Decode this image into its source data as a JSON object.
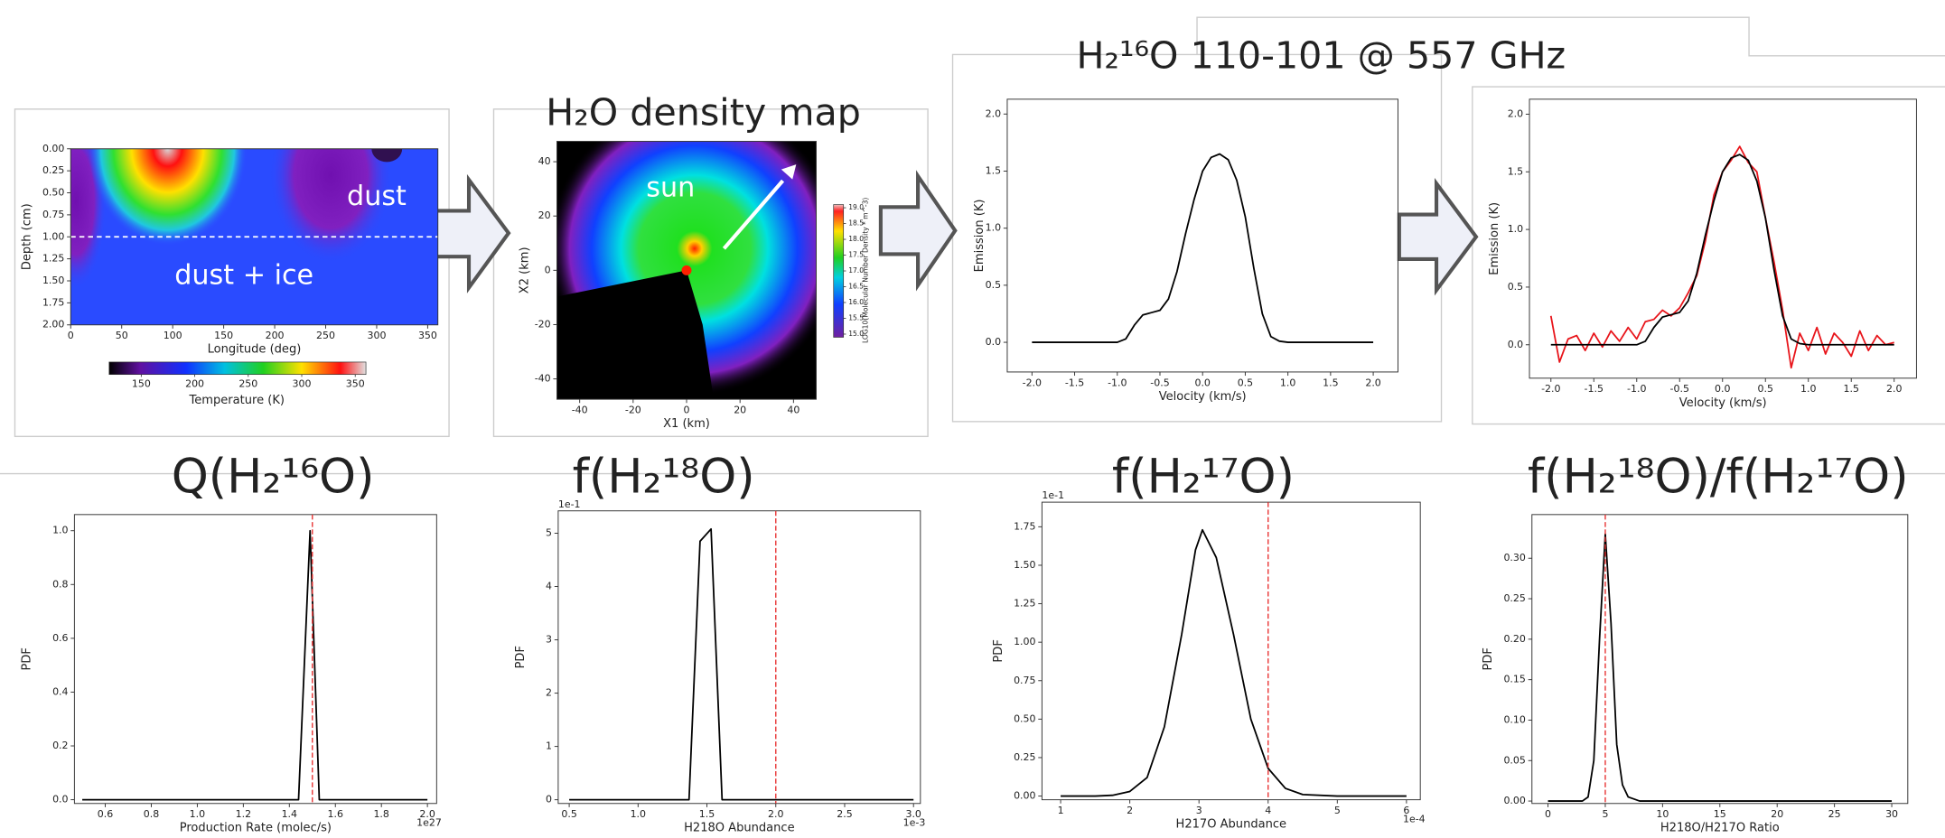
{
  "chart_data": [
    {
      "type": "heatmap",
      "xlabel": "Longitude (deg)",
      "ylabel": "Depth (cm)",
      "xlim": [
        0,
        360
      ],
      "xticks": [
        0,
        50,
        100,
        150,
        200,
        250,
        300,
        350
      ],
      "ylim": [
        2,
        0
      ],
      "yticks": [
        {
          "value": 0,
          "label": "0.00"
        },
        0.25,
        {
          "value": 0.5,
          "label": "0.50"
        },
        0.75,
        {
          "value": 1,
          "label": "1.00"
        },
        1.25,
        {
          "value": 1.5,
          "label": "1.50"
        },
        1.75,
        {
          "value": 2,
          "label": "2.00"
        }
      ],
      "annotations": [
        "dust",
        "dust + ice"
      ],
      "boundary_depth": 1.0,
      "colorbar": {
        "range": [
          120,
          360
        ],
        "ticks": [
          150,
          200,
          250,
          300,
          350
        ],
        "label": "Temperature (K)"
      }
    },
    {
      "type": "heatmap",
      "title": "H₂O density map",
      "xlabel": "X1 (km)",
      "ylabel": "X2 (km)",
      "xlim": [
        -48.5,
        48.5
      ],
      "xticks": [
        -40,
        -20,
        0,
        20,
        40
      ],
      "ylim": [
        -47.5,
        47.5
      ],
      "yticks": [
        -40,
        -20,
        0,
        20,
        40
      ],
      "annotations": [
        "sun"
      ],
      "colorbar": {
        "range": [
          14.9,
          19.1
        ],
        "ticks": [
          {
            "value": 15,
            "label": "15.0"
          },
          15.5,
          {
            "value": 16,
            "label": "16.0"
          },
          16.5,
          {
            "value": 17,
            "label": "17.0"
          },
          17.5,
          {
            "value": 18,
            "label": "18.0"
          },
          18.5,
          {
            "value": 19,
            "label": "19.0"
          }
        ],
        "label": "LOG10(Molecular Number Density * m^-3)"
      }
    },
    {
      "type": "line",
      "title": "H₂¹⁶O 110-101 @ 557 GHz",
      "xlabel": "Velocity (km/s)",
      "ylabel": "Emission (K)",
      "xlim": [
        -2.29,
        2.29
      ],
      "xticks": [
        {
          "value": -2,
          "label": "-2.0"
        },
        -1.5,
        {
          "value": -1,
          "label": "-1.0"
        },
        -0.5,
        {
          "value": 0,
          "label": "0.0"
        },
        0.5,
        {
          "value": 1,
          "label": "1.0"
        },
        1.5,
        {
          "value": 2,
          "label": "2.0"
        }
      ],
      "ylim": [
        -0.26,
        2.13
      ],
      "yticks": [
        {
          "value": 0,
          "label": "0.0"
        },
        0.5,
        {
          "value": 1,
          "label": "1.0"
        },
        1.5,
        {
          "value": 2,
          "label": "2.0"
        }
      ],
      "x": [
        -2.0,
        -1.9,
        -1.8,
        -1.7,
        -1.6,
        -1.5,
        -1.4,
        -1.3,
        -1.2,
        -1.1,
        -1.0,
        -0.9,
        -0.8,
        -0.7,
        -0.6,
        -0.5,
        -0.4,
        -0.3,
        -0.2,
        -0.1,
        0.0,
        0.1,
        0.2,
        0.3,
        0.4,
        0.5,
        0.6,
        0.7,
        0.8,
        0.9,
        1.0,
        1.1,
        1.2,
        1.3,
        1.4,
        1.5,
        1.6,
        1.7,
        1.8,
        1.9,
        2.0
      ],
      "series": [
        {
          "color": "#000000",
          "values": [
            0,
            0,
            0,
            0,
            0,
            0,
            0,
            0,
            0,
            0,
            0,
            0.03,
            0.15,
            0.24,
            0.26,
            0.28,
            0.38,
            0.62,
            0.95,
            1.25,
            1.5,
            1.62,
            1.65,
            1.6,
            1.42,
            1.1,
            0.65,
            0.25,
            0.05,
            0.01,
            0,
            0,
            0,
            0,
            0,
            0,
            0,
            0,
            0,
            0,
            0
          ]
        }
      ]
    },
    {
      "type": "line",
      "xlabel": "Velocity (km/s)",
      "ylabel": "Emission (K)",
      "xlim": [
        -2.25,
        2.26
      ],
      "xticks": [
        {
          "value": -2,
          "label": "-2.0"
        },
        -1.5,
        {
          "value": -1,
          "label": "-1.0"
        },
        -0.5,
        {
          "value": 0,
          "label": "0.0"
        },
        0.5,
        {
          "value": 1,
          "label": "1.0"
        },
        1.5,
        {
          "value": 2,
          "label": "2.0"
        }
      ],
      "ylim": [
        -0.29,
        2.13
      ],
      "yticks": [
        {
          "value": 0,
          "label": "0.0"
        },
        0.5,
        {
          "value": 1,
          "label": "1.0"
        },
        1.5,
        {
          "value": 2,
          "label": "2.0"
        }
      ],
      "x": [
        -2.0,
        -1.9,
        -1.8,
        -1.7,
        -1.6,
        -1.5,
        -1.4,
        -1.3,
        -1.2,
        -1.1,
        -1.0,
        -0.9,
        -0.8,
        -0.7,
        -0.6,
        -0.5,
        -0.4,
        -0.3,
        -0.2,
        -0.1,
        0.0,
        0.1,
        0.2,
        0.3,
        0.4,
        0.5,
        0.6,
        0.7,
        0.8,
        0.9,
        1.0,
        1.1,
        1.2,
        1.3,
        1.4,
        1.5,
        1.6,
        1.7,
        1.8,
        1.9,
        2.0
      ],
      "series": [
        {
          "color": "#e8141a",
          "values": [
            0.25,
            -0.15,
            0.05,
            0.08,
            -0.05,
            0.1,
            -0.02,
            0.12,
            0.03,
            0.15,
            0.05,
            0.2,
            0.22,
            0.3,
            0.25,
            0.32,
            0.45,
            0.6,
            0.9,
            1.3,
            1.5,
            1.6,
            1.72,
            1.58,
            1.5,
            1.1,
            0.72,
            0.3,
            -0.2,
            0.1,
            -0.05,
            0.15,
            -0.08,
            0.1,
            0.02,
            -0.1,
            0.12,
            -0.05,
            0.08,
            0.0,
            0.02
          ]
        },
        {
          "color": "#000000",
          "values": [
            0,
            0,
            0,
            0,
            0,
            0,
            0,
            0,
            0,
            0,
            0,
            0.03,
            0.15,
            0.24,
            0.26,
            0.28,
            0.38,
            0.62,
            0.95,
            1.25,
            1.5,
            1.62,
            1.65,
            1.6,
            1.42,
            1.1,
            0.65,
            0.25,
            0.05,
            0.01,
            0,
            0,
            0,
            0,
            0,
            0,
            0,
            0,
            0,
            0,
            0
          ]
        }
      ]
    },
    {
      "type": "line",
      "title": "Q(H₂¹⁶O)",
      "xlabel": "Production Rate (molec/s)",
      "ylabel": "PDF",
      "x_offset_label": "1e27",
      "xlim": [
        0.466,
        2.04
      ],
      "xticks": [
        0.6,
        0.8,
        {
          "value": 1,
          "label": "1.0"
        },
        1.2,
        1.4,
        1.6,
        1.8,
        {
          "value": 2,
          "label": "2.0"
        }
      ],
      "ylim": [
        -0.014,
        1.06
      ],
      "yticks": [
        {
          "value": 0,
          "label": "0.0"
        },
        0.2,
        0.4,
        0.6,
        0.8,
        {
          "value": 1,
          "label": "1.0"
        }
      ],
      "x": [
        0.5,
        1.44,
        1.49,
        1.53,
        2.0
      ],
      "series": [
        {
          "color": "#000000",
          "values": [
            0,
            0,
            1.0,
            0,
            0
          ]
        }
      ],
      "reference_line": {
        "x": 1.5,
        "color": "#e83030"
      }
    },
    {
      "type": "line",
      "title": "f(H₂¹⁸O)",
      "xlabel": "H218O Abundance",
      "ylabel": "PDF",
      "x_offset_label": "1e-3",
      "y_offset_label": "1e-1",
      "xlim": [
        0.42,
        3.05
      ],
      "xticks": [
        0.5,
        {
          "value": 1,
          "label": "1.0"
        },
        1.5,
        {
          "value": 2,
          "label": "2.0"
        },
        2.5,
        {
          "value": 3,
          "label": "3.0"
        }
      ],
      "ylim": [
        -0.07,
        5.42
      ],
      "yticks": [
        0,
        1,
        2,
        3,
        4,
        5
      ],
      "x": [
        0.5,
        1.37,
        1.45,
        1.53,
        1.61,
        3.0
      ],
      "series": [
        {
          "color": "#000000",
          "values": [
            0,
            0,
            4.85,
            5.08,
            0,
            0
          ]
        }
      ],
      "reference_line": {
        "x": 2.0,
        "color": "#e83030"
      }
    },
    {
      "type": "line",
      "title": "f(H₂¹⁷O)",
      "xlabel": "H217O Abundance",
      "ylabel": "PDF",
      "x_offset_label": "1e-4",
      "y_offset_label": "1e-1",
      "xlim": [
        0.73,
        6.2
      ],
      "xticks": [
        1,
        2,
        3,
        4,
        5,
        6
      ],
      "ylim": [
        -0.024,
        1.91
      ],
      "yticks": [
        {
          "value": 0,
          "label": "0.00"
        },
        0.25,
        {
          "value": 0.5,
          "label": "0.50"
        },
        0.75,
        {
          "value": 1,
          "label": "1.00"
        },
        1.25,
        {
          "value": 1.5,
          "label": "1.50"
        },
        1.75
      ],
      "x": [
        1.0,
        1.5,
        1.75,
        2.0,
        2.25,
        2.5,
        2.75,
        2.95,
        3.05,
        3.25,
        3.5,
        3.75,
        4.0,
        4.25,
        4.5,
        5.0,
        6.0
      ],
      "series": [
        {
          "color": "#000000",
          "values": [
            0,
            0,
            0.005,
            0.03,
            0.12,
            0.45,
            1.05,
            1.6,
            1.73,
            1.55,
            1.05,
            0.5,
            0.18,
            0.05,
            0.01,
            0,
            0
          ]
        }
      ],
      "reference_line": {
        "x": 4.0,
        "color": "#e83030"
      }
    },
    {
      "type": "line",
      "title": "f(H₂¹⁸O)/f(H₂¹⁷O)",
      "xlabel": "H218O/H217O Ratio",
      "ylabel": "PDF",
      "xlim": [
        -1.4,
        31.4
      ],
      "xticks": [
        0,
        5,
        10,
        15,
        20,
        25,
        30
      ],
      "ylim": [
        -0.003,
        0.354
      ],
      "yticks": [
        {
          "value": 0,
          "label": "0.00"
        },
        0.05,
        {
          "value": 0.1,
          "label": "0.10"
        },
        0.15,
        {
          "value": 0.2,
          "label": "0.20"
        },
        0.25,
        {
          "value": 0.3,
          "label": "0.30"
        }
      ],
      "x": [
        0,
        3,
        3.5,
        4,
        4.5,
        5,
        5.5,
        6,
        6.5,
        7,
        8,
        30
      ],
      "series": [
        {
          "color": "#000000",
          "values": [
            0,
            0,
            0.005,
            0.05,
            0.2,
            0.33,
            0.22,
            0.07,
            0.02,
            0.005,
            0,
            0
          ]
        }
      ],
      "reference_line": {
        "x": 5,
        "color": "#e83030"
      }
    }
  ]
}
